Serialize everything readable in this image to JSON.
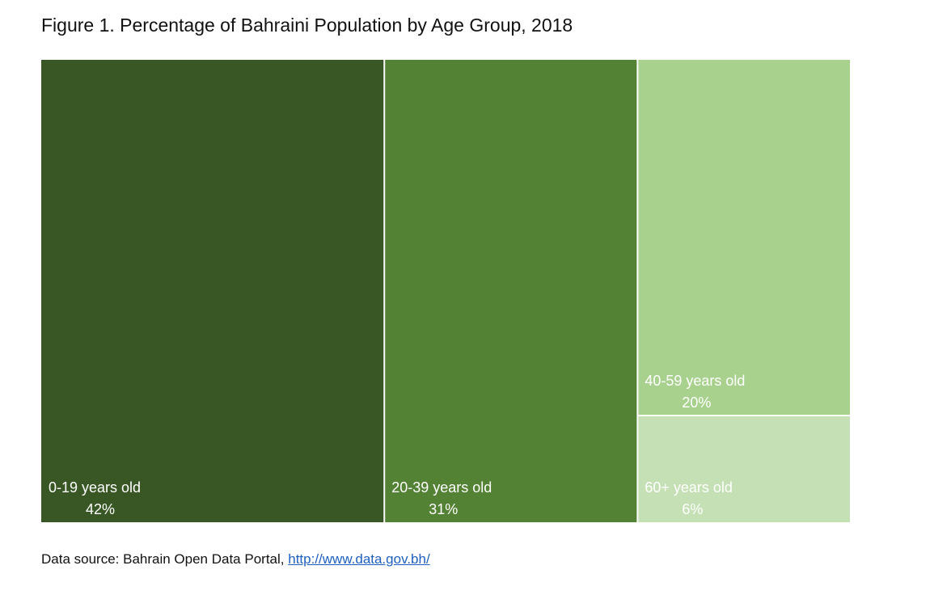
{
  "chart_data": {
    "type": "treemap",
    "title": "Figure 1. Percentage of Bahraini Population by Age Group, 2018",
    "items": [
      {
        "label": "0-19 years old",
        "value": 42,
        "value_label": "42%",
        "color": "#385724"
      },
      {
        "label": "20-39 years old",
        "value": 31,
        "value_label": "31%",
        "color": "#548235"
      },
      {
        "label": "40-59 years old",
        "value": 20,
        "value_label": "20%",
        "color": "#a9d18e"
      },
      {
        "label": "60+ years old",
        "value": 6,
        "value_label": "6%",
        "color": "#c5e0b4"
      }
    ]
  },
  "footer": {
    "source_text": "Data source: Bahrain Open Data Portal,",
    "link_text": "http://www.data.gov.bh/"
  }
}
